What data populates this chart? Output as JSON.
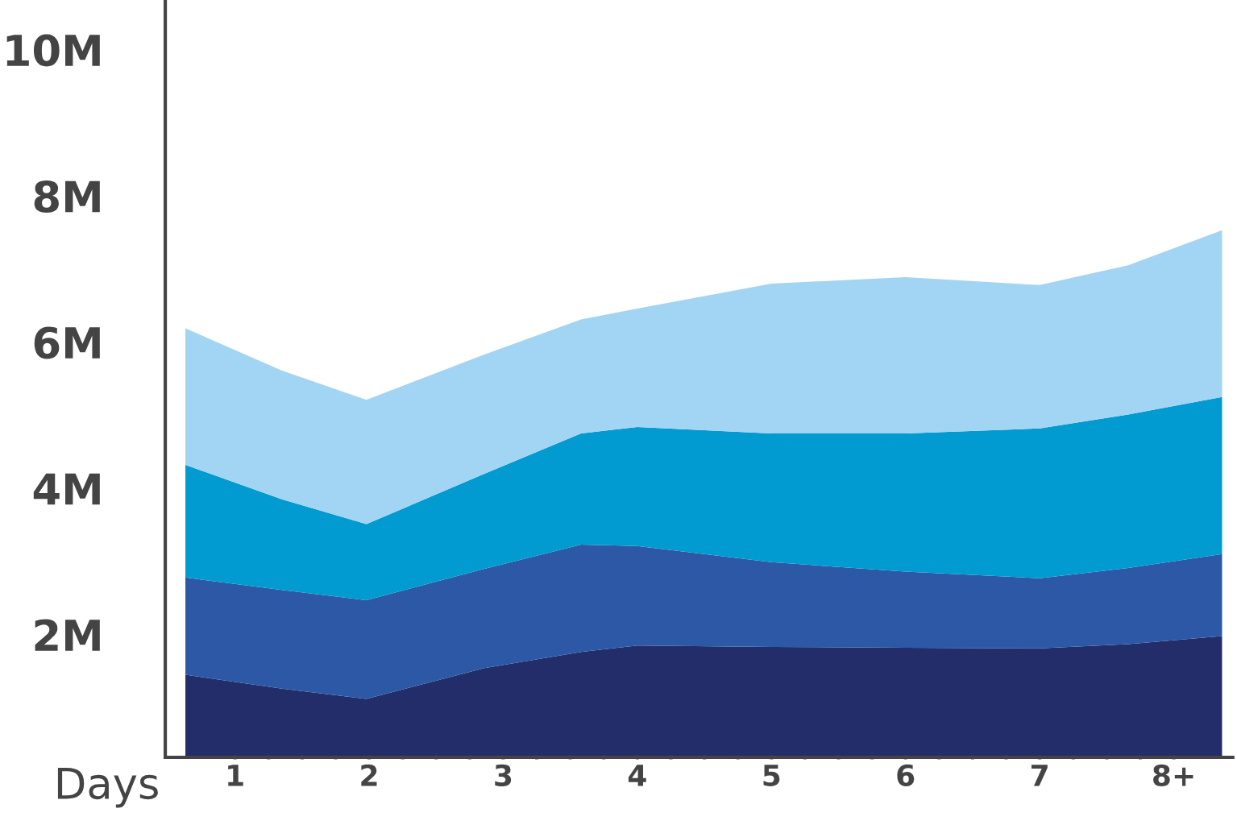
{
  "chart_data": {
    "type": "area",
    "stacked": true,
    "xlabel": "Days",
    "x": [
      0.63,
      1.35,
      1.98,
      2.86,
      3.58,
      4.0,
      5.0,
      6.0,
      7.0,
      7.66,
      8.36
    ],
    "xlim": [
      0.48,
      8.44
    ],
    "xticks": [
      {
        "value": 1,
        "label": "1"
      },
      {
        "value": 1.25,
        "label": null
      },
      {
        "value": 1.5,
        "label": null
      },
      {
        "value": 1.75,
        "label": null
      },
      {
        "value": 2,
        "label": "2"
      },
      {
        "value": 2.25,
        "label": null
      },
      {
        "value": 2.5,
        "label": null
      },
      {
        "value": 2.75,
        "label": null
      },
      {
        "value": 3,
        "label": "3"
      },
      {
        "value": 3.25,
        "label": null
      },
      {
        "value": 3.5,
        "label": null
      },
      {
        "value": 3.75,
        "label": null
      },
      {
        "value": 4,
        "label": "4"
      },
      {
        "value": 4.25,
        "label": null
      },
      {
        "value": 4.5,
        "label": null
      },
      {
        "value": 4.75,
        "label": null
      },
      {
        "value": 5,
        "label": "5"
      },
      {
        "value": 5.25,
        "label": null
      },
      {
        "value": 5.5,
        "label": null
      },
      {
        "value": 5.75,
        "label": null
      },
      {
        "value": 6,
        "label": "6"
      },
      {
        "value": 6.25,
        "label": null
      },
      {
        "value": 6.5,
        "label": null
      },
      {
        "value": 6.75,
        "label": null
      },
      {
        "value": 7,
        "label": "7"
      },
      {
        "value": 7.25,
        "label": null
      },
      {
        "value": 7.5,
        "label": null
      },
      {
        "value": 7.75,
        "label": null
      },
      {
        "value": 8,
        "label": "8+"
      }
    ],
    "ylim": [
      0.32,
      10.68
    ],
    "yticks": [
      {
        "value": 2,
        "label": "2M"
      },
      {
        "value": 4,
        "label": "4M"
      },
      {
        "value": 6,
        "label": "6M"
      },
      {
        "value": 8,
        "label": "8M"
      },
      {
        "value": 10,
        "label": "10M"
      }
    ],
    "grid": false,
    "legend": false,
    "series": [
      {
        "color": "#232d69",
        "values": [
          1.45,
          1.26,
          1.12,
          1.54,
          1.76,
          1.85,
          1.83,
          1.82,
          1.81,
          1.87,
          1.98
        ]
      },
      {
        "color": "#2d58a5",
        "values": [
          1.33,
          1.35,
          1.35,
          1.36,
          1.47,
          1.36,
          1.16,
          1.04,
          0.96,
          1.04,
          1.12
        ]
      },
      {
        "color": "#019bd2",
        "values": [
          1.54,
          1.24,
          1.04,
          1.3,
          1.52,
          1.63,
          1.76,
          1.89,
          2.05,
          2.1,
          2.15
        ]
      },
      {
        "color": "#a2d5f3",
        "values": [
          1.87,
          1.76,
          1.7,
          1.63,
          1.56,
          1.62,
          2.05,
          2.14,
          1.96,
          2.04,
          2.28
        ]
      }
    ]
  }
}
